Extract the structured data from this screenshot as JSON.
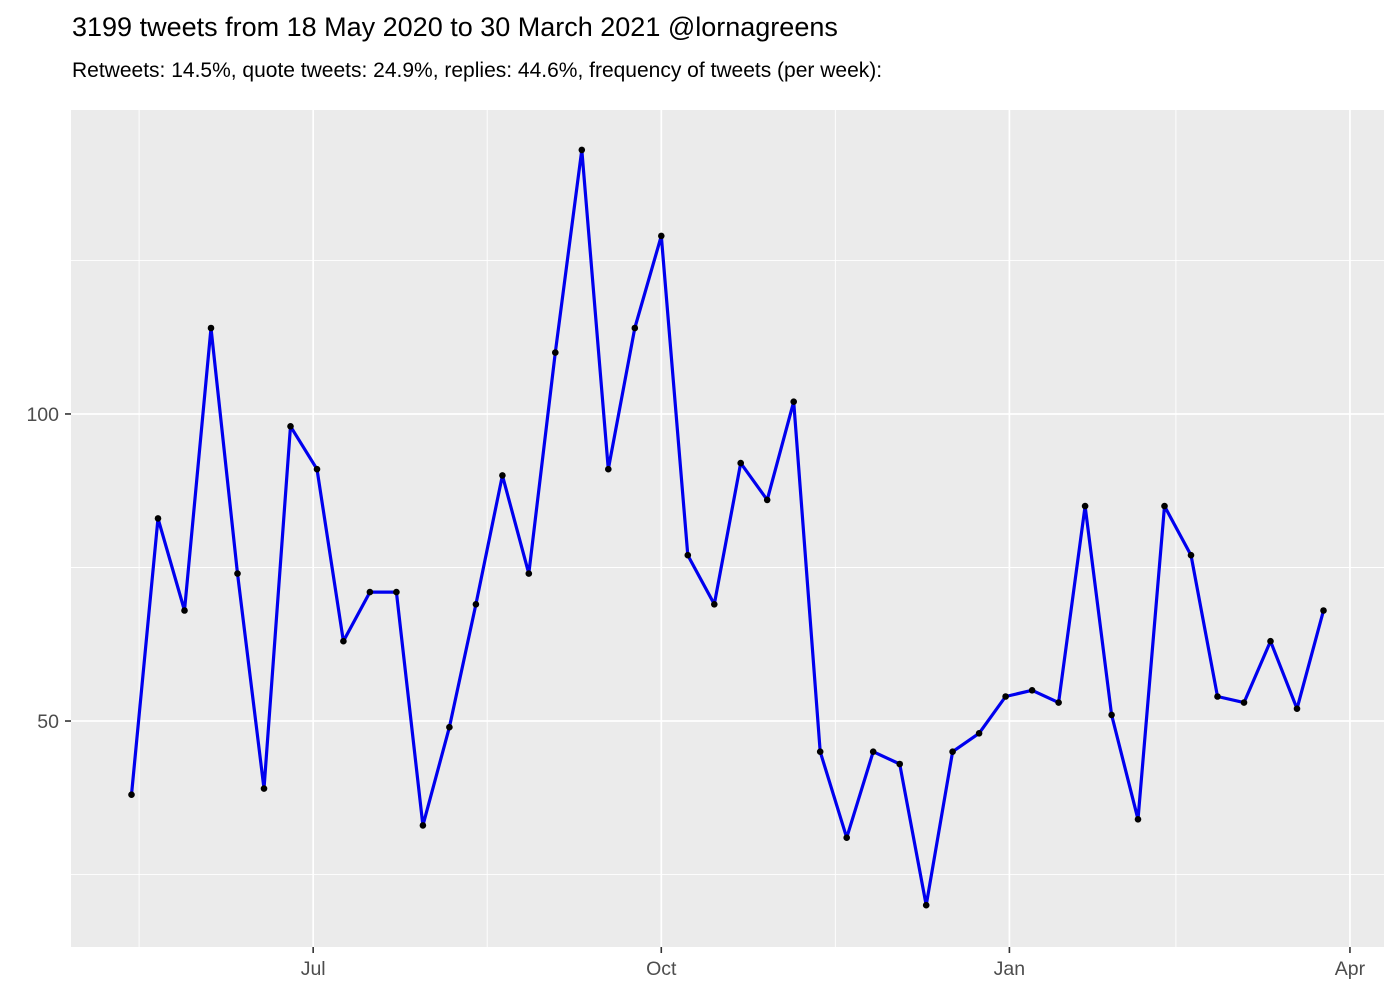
{
  "chart_data": {
    "type": "line",
    "title": "3199 tweets from 18 May 2020 to 30 March 2021 @lornagreens",
    "subtitle": "Retweets: 14.5%, quote tweets: 24.9%, replies: 44.6%, frequency of tweets (per week):",
    "series_name": "tweets-per-week",
    "x": [
      "2020-05-14",
      "2020-05-21",
      "2020-05-28",
      "2020-06-04",
      "2020-06-11",
      "2020-06-18",
      "2020-06-25",
      "2020-07-02",
      "2020-07-09",
      "2020-07-16",
      "2020-07-23",
      "2020-07-30",
      "2020-08-06",
      "2020-08-13",
      "2020-08-20",
      "2020-08-27",
      "2020-09-03",
      "2020-09-10",
      "2020-09-17",
      "2020-09-24",
      "2020-10-01",
      "2020-10-08",
      "2020-10-15",
      "2020-10-22",
      "2020-10-29",
      "2020-11-05",
      "2020-11-12",
      "2020-11-19",
      "2020-11-26",
      "2020-12-03",
      "2020-12-10",
      "2020-12-17",
      "2020-12-24",
      "2020-12-31",
      "2021-01-07",
      "2021-01-14",
      "2021-01-21",
      "2021-01-28",
      "2021-02-04",
      "2021-02-11",
      "2021-02-18",
      "2021-02-25",
      "2021-03-04",
      "2021-03-11",
      "2021-03-18",
      "2021-03-25"
    ],
    "values": [
      38,
      83,
      68,
      114,
      74,
      39,
      98,
      91,
      63,
      71,
      71,
      33,
      49,
      69,
      90,
      74,
      110,
      143,
      91,
      114,
      129,
      77,
      69,
      92,
      86,
      102,
      45,
      31,
      45,
      43,
      20,
      45,
      48,
      54,
      55,
      53,
      85,
      51,
      34,
      85,
      77,
      54,
      53,
      63,
      52,
      68
    ],
    "x_axis": {
      "ticks": [
        {
          "label": "Jul",
          "date": "2020-07-01"
        },
        {
          "label": "Oct",
          "date": "2020-10-01"
        },
        {
          "label": "Jan",
          "date": "2021-01-01"
        },
        {
          "label": "Apr",
          "date": "2021-04-01"
        }
      ],
      "minor_dates": [
        "2020-05-16",
        "2020-08-16",
        "2020-11-16",
        "2021-02-14"
      ],
      "range": [
        "2020-04-28",
        "2021-04-10"
      ]
    },
    "y_axis": {
      "ticks": [
        {
          "label": "50",
          "value": 50
        },
        {
          "label": "100",
          "value": 100
        }
      ],
      "minor_values": [
        25,
        75,
        125
      ],
      "range": [
        13.2,
        149.5
      ]
    },
    "legend": "none",
    "grid": "on"
  },
  "colors": {
    "panel_bg": "#EBEBEB",
    "gridline": "#FFFFFF",
    "line": "#0000EE",
    "point": "#000000",
    "axis_text": "#4D4D4D",
    "tick_mark": "#333333",
    "title_text": "#000000"
  }
}
